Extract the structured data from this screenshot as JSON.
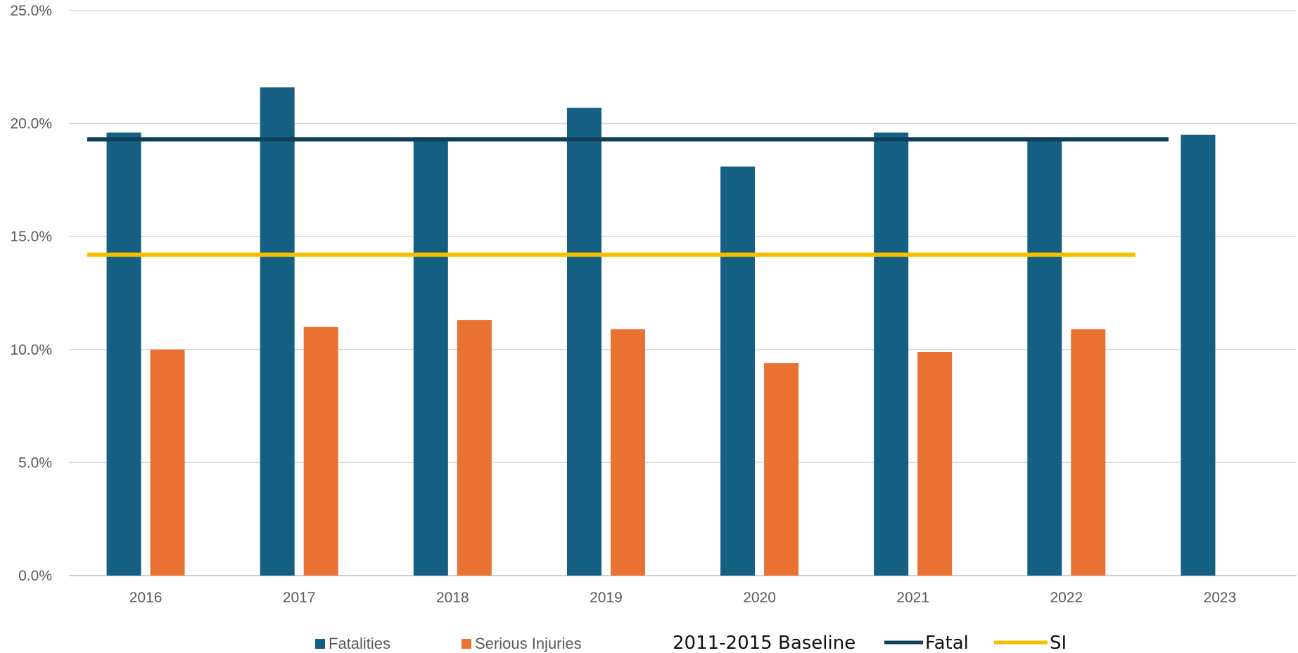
{
  "chart_data": {
    "type": "bar",
    "categories": [
      "2016",
      "2017",
      "2018",
      "2019",
      "2020",
      "2021",
      "2022",
      "2023"
    ],
    "series": [
      {
        "name": "Fatalities",
        "color": "#156082",
        "values": [
          19.6,
          21.6,
          19.3,
          20.7,
          18.1,
          19.6,
          19.3,
          19.5
        ]
      },
      {
        "name": "Serious Injuries",
        "color": "#E97132",
        "values": [
          10.0,
          11.0,
          11.3,
          10.9,
          9.4,
          9.9,
          10.9,
          null
        ]
      }
    ],
    "baselines": {
      "label": "2011-2015 Baseline",
      "lines": [
        {
          "name": "Fatal",
          "color": "#0E3F5B",
          "value": 19.3
        },
        {
          "name": "SI",
          "color": "#F5C000",
          "value": 14.2
        }
      ]
    },
    "yticks": [
      "0.0%",
      "5.0%",
      "10.0%",
      "15.0%",
      "20.0%",
      "25.0%"
    ],
    "ylim": [
      0,
      25
    ],
    "grid": true,
    "legend_position": "bottom"
  }
}
